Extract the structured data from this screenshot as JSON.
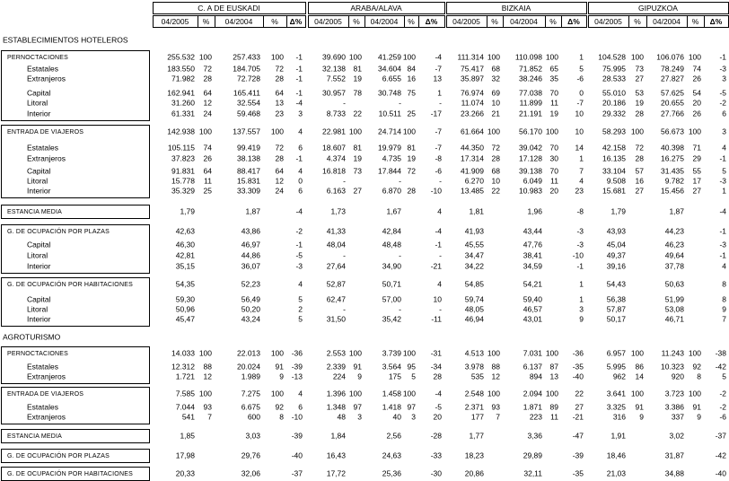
{
  "header": {
    "regions": [
      "C. A DE EUSKADI",
      "ARABA/ALAVA",
      "BIZKAIA",
      "GIPUZKOA"
    ],
    "subcolumns": [
      "04/2005",
      "%",
      "04/2004",
      "%",
      "Δ%"
    ]
  },
  "sections": [
    {
      "title": "ESTABLECIMIENTOS HOTELEROS",
      "groups": [
        {
          "rows": [
            {
              "label": "PERNOCTACIONES",
              "cells": [
                "255.532",
                "100",
                "257.433",
                "100",
                "-1",
                "39.690",
                "100",
                "41.259",
                "100",
                "-4",
                "111.314",
                "100",
                "110.098",
                "100",
                "1",
                "104.528",
                "100",
                "106.076",
                "100",
                "-1"
              ]
            },
            {
              "label": "Estatales",
              "cells": [
                "183.550",
                "72",
                "184.705",
                "72",
                "-1",
                "32.138",
                "81",
                "34.604",
                "84",
                "-7",
                "75.417",
                "68",
                "71.852",
                "65",
                "5",
                "75.995",
                "73",
                "78.249",
                "74",
                "-3"
              ]
            },
            {
              "label": "Extranjeros",
              "cells": [
                "71.982",
                "28",
                "72.728",
                "28",
                "-1",
                "7.552",
                "19",
                "6.655",
                "16",
                "13",
                "35.897",
                "32",
                "38.246",
                "35",
                "-6",
                "28.533",
                "27",
                "27.827",
                "26",
                "3"
              ]
            },
            {
              "label": "Capital",
              "cells": [
                "162.941",
                "64",
                "165.411",
                "64",
                "-1",
                "30.957",
                "78",
                "30.748",
                "75",
                "1",
                "76.974",
                "69",
                "77.038",
                "70",
                "0",
                "55.010",
                "53",
                "57.625",
                "54",
                "-5"
              ]
            },
            {
              "label": "Litoral",
              "cells": [
                "31.260",
                "12",
                "32.554",
                "13",
                "-4",
                "-",
                null,
                "-",
                null,
                "-",
                "11.074",
                "10",
                "11.899",
                "11",
                "-7",
                "20.186",
                "19",
                "20.655",
                "20",
                "-2"
              ]
            },
            {
              "label": "Interior",
              "cells": [
                "61.331",
                "24",
                "59.468",
                "23",
                "3",
                "8.733",
                "22",
                "10.511",
                "25",
                "-17",
                "23.266",
                "21",
                "21.191",
                "19",
                "10",
                "29.332",
                "28",
                "27.766",
                "26",
                "6"
              ]
            }
          ]
        },
        {
          "rows": [
            {
              "label": "ENTRADA DE VIAJEROS",
              "cells": [
                "142.938",
                "100",
                "137.557",
                "100",
                "4",
                "22.981",
                "100",
                "24.714",
                "100",
                "-7",
                "61.664",
                "100",
                "56.170",
                "100",
                "10",
                "58.293",
                "100",
                "56.673",
                "100",
                "3"
              ]
            },
            {
              "label": "Estatales",
              "cells": [
                "105.115",
                "74",
                "99.419",
                "72",
                "6",
                "18.607",
                "81",
                "19.979",
                "81",
                "-7",
                "44.350",
                "72",
                "39.042",
                "70",
                "14",
                "42.158",
                "72",
                "40.398",
                "71",
                "4"
              ]
            },
            {
              "label": "Extranjeros",
              "cells": [
                "37.823",
                "26",
                "38.138",
                "28",
                "-1",
                "4.374",
                "19",
                "4.735",
                "19",
                "-8",
                "17.314",
                "28",
                "17.128",
                "30",
                "1",
                "16.135",
                "28",
                "16.275",
                "29",
                "-1"
              ]
            },
            {
              "label": "Capital",
              "cells": [
                "91.831",
                "64",
                "88.417",
                "64",
                "4",
                "16.818",
                "73",
                "17.844",
                "72",
                "-6",
                "41.909",
                "68",
                "39.138",
                "70",
                "7",
                "33.104",
                "57",
                "31.435",
                "55",
                "5"
              ]
            },
            {
              "label": "Litoral",
              "cells": [
                "15.778",
                "11",
                "15.831",
                "12",
                "0",
                "-",
                null,
                "-",
                null,
                "-",
                "6.270",
                "10",
                "6.049",
                "11",
                "4",
                "9.508",
                "16",
                "9.782",
                "17",
                "-3"
              ]
            },
            {
              "label": "Interior",
              "cells": [
                "35.329",
                "25",
                "33.309",
                "24",
                "6",
                "6.163",
                "27",
                "6.870",
                "28",
                "-10",
                "13.485",
                "22",
                "10.983",
                "20",
                "23",
                "15.681",
                "27",
                "15.456",
                "27",
                "1"
              ]
            }
          ]
        },
        {
          "rows": [
            {
              "label": "ESTANCIA MEDIA",
              "cells": [
                "1,79",
                null,
                "1,87",
                null,
                "-4",
                "1,73",
                null,
                "1,67",
                null,
                "4",
                "1,81",
                null,
                "1,96",
                null,
                "-8",
                "1,79",
                null,
                "1,87",
                null,
                "-4"
              ]
            }
          ]
        },
        {
          "rows": [
            {
              "label": "G. DE OCUPACIÓN POR PLAZAS",
              "cells": [
                "42,63",
                null,
                "43,86",
                null,
                "-2",
                "41,33",
                null,
                "42,84",
                null,
                "-4",
                "41,93",
                null,
                "43,44",
                null,
                "-3",
                "43,93",
                null,
                "44,23",
                null,
                "-1"
              ]
            },
            {
              "label": "Capital",
              "cells": [
                "46,30",
                null,
                "46,97",
                null,
                "-1",
                "48,04",
                null,
                "48,48",
                null,
                "-1",
                "45,55",
                null,
                "47,76",
                null,
                "-3",
                "45,04",
                null,
                "46,23",
                null,
                "-3"
              ]
            },
            {
              "label": "Litoral",
              "cells": [
                "42,81",
                null,
                "44,86",
                null,
                "-5",
                "-",
                null,
                "-",
                null,
                "-",
                "34,47",
                null,
                "38,41",
                null,
                "-10",
                "49,37",
                null,
                "49,64",
                null,
                "-1"
              ]
            },
            {
              "label": "Interior",
              "cells": [
                "35,15",
                null,
                "36,07",
                null,
                "-3",
                "27,64",
                null,
                "34,90",
                null,
                "-21",
                "34,22",
                null,
                "34,59",
                null,
                "-1",
                "39,16",
                null,
                "37,78",
                null,
                "4"
              ]
            }
          ]
        },
        {
          "rows": [
            {
              "label": "G. DE OCUPACIÓN POR HABITACIONES",
              "cells": [
                "54,35",
                null,
                "52,23",
                null,
                "4",
                "52,87",
                null,
                "50,71",
                null,
                "4",
                "54,85",
                null,
                "54,21",
                null,
                "1",
                "54,43",
                null,
                "50,63",
                null,
                "8"
              ]
            },
            {
              "label": "Capital",
              "cells": [
                "59,30",
                null,
                "56,49",
                null,
                "5",
                "62,47",
                null,
                "57,00",
                null,
                "10",
                "59,74",
                null,
                "59,40",
                null,
                "1",
                "56,38",
                null,
                "51,99",
                null,
                "8"
              ]
            },
            {
              "label": "Litoral",
              "cells": [
                "50,96",
                null,
                "50,20",
                null,
                "2",
                "-",
                null,
                "-",
                null,
                "-",
                "48,05",
                null,
                "46,57",
                null,
                "3",
                "57,87",
                null,
                "53,08",
                null,
                "9"
              ]
            },
            {
              "label": "Interior",
              "cells": [
                "45,47",
                null,
                "43,24",
                null,
                "5",
                "31,50",
                null,
                "35,42",
                null,
                "-11",
                "46,94",
                null,
                "43,01",
                null,
                "9",
                "50,17",
                null,
                "46,71",
                null,
                "7"
              ]
            }
          ]
        }
      ]
    },
    {
      "title": "AGROTURISMO",
      "groups": [
        {
          "rows": [
            {
              "label": "PERNOCTACIONES",
              "cells": [
                "14.033",
                "100",
                "22.013",
                "100",
                "-36",
                "2.553",
                "100",
                "3.739",
                "100",
                "-31",
                "4.513",
                "100",
                "7.031",
                "100",
                "-36",
                "6.957",
                "100",
                "11.243",
                "100",
                "-38"
              ]
            },
            {
              "label": "Estatales",
              "cells": [
                "12.312",
                "88",
                "20.024",
                "91",
                "-39",
                "2.339",
                "91",
                "3.564",
                "95",
                "-34",
                "3.978",
                "88",
                "6.137",
                "87",
                "-35",
                "5.995",
                "86",
                "10.323",
                "92",
                "-42"
              ]
            },
            {
              "label": "Extranjeros",
              "cells": [
                "1.721",
                "12",
                "1.989",
                "9",
                "-13",
                "224",
                "9",
                "175",
                "5",
                "28",
                "535",
                "12",
                "894",
                "13",
                "-40",
                "962",
                "14",
                "920",
                "8",
                "5"
              ]
            }
          ]
        },
        {
          "rows": [
            {
              "label": "ENTRADA DE VIAJEROS",
              "cells": [
                "7.585",
                "100",
                "7.275",
                "100",
                "4",
                "1.396",
                "100",
                "1.458",
                "100",
                "-4",
                "2.548",
                "100",
                "2.094",
                "100",
                "22",
                "3.641",
                "100",
                "3.723",
                "100",
                "-2"
              ]
            },
            {
              "label": "Estatales",
              "cells": [
                "7.044",
                "93",
                "6.675",
                "92",
                "6",
                "1.348",
                "97",
                "1.418",
                "97",
                "-5",
                "2.371",
                "93",
                "1.871",
                "89",
                "27",
                "3.325",
                "91",
                "3.386",
                "91",
                "-2"
              ]
            },
            {
              "label": "Extranjeros",
              "cells": [
                "541",
                "7",
                "600",
                "8",
                "-10",
                "48",
                "3",
                "40",
                "3",
                "20",
                "177",
                "7",
                "223",
                "11",
                "-21",
                "316",
                "9",
                "337",
                "9",
                "-6"
              ]
            }
          ]
        },
        {
          "rows": [
            {
              "label": "ESTANCIA MEDIA",
              "cells": [
                "1,85",
                null,
                "3,03",
                null,
                "-39",
                "1,84",
                null,
                "2,56",
                null,
                "-28",
                "1,77",
                null,
                "3,36",
                null,
                "-47",
                "1,91",
                null,
                "3,02",
                null,
                "-37"
              ]
            }
          ]
        },
        {
          "rows": [
            {
              "label": "G. DE OCUPACIÓN POR PLAZAS",
              "cells": [
                "17,98",
                null,
                "29,76",
                null,
                "-40",
                "16,43",
                null,
                "24,63",
                null,
                "-33",
                "18,23",
                null,
                "29,89",
                null,
                "-39",
                "18,46",
                null,
                "31,87",
                null,
                "-42"
              ]
            }
          ]
        },
        {
          "rows": [
            {
              "label": "G. DE OCUPACIÓN POR HABITACIONES",
              "cells": [
                "20,33",
                null,
                "32,06",
                null,
                "-37",
                "17,72",
                null,
                "25,36",
                null,
                "-30",
                "20,86",
                null,
                "32,11",
                null,
                "-35",
                "21,03",
                null,
                "34,88",
                null,
                "-40"
              ]
            }
          ]
        }
      ]
    }
  ]
}
